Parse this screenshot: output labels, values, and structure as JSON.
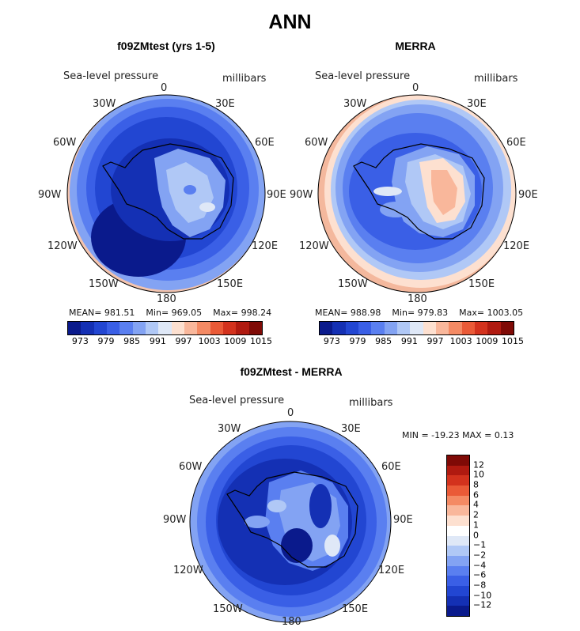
{
  "title": "ANN",
  "panels": {
    "model": {
      "title": "f09ZMtest (yrs 1-5)",
      "variable": "Sea-level pressure",
      "units": "millibars",
      "mean_label": "MEAN=",
      "mean": "981.51",
      "min_label": "Min=",
      "min": "969.05",
      "max_label": "Max=",
      "max": "998.24"
    },
    "obs": {
      "title": "MERRA",
      "variable": "Sea-level pressure",
      "units": "millibars",
      "mean_label": "MEAN=",
      "mean": "988.98",
      "min_label": "Min=",
      "min": "979.83",
      "max_label": "Max=",
      "max": "1003.05"
    },
    "diff": {
      "title": "f09ZMtest - MERRA",
      "variable": "Sea-level pressure",
      "units": "millibars",
      "minmax": "MIN = -19.23 MAX =   0.13"
    }
  },
  "longitude_labels": {
    "top": "0",
    "n30e": "30E",
    "n60e": "60E",
    "e90": "90E",
    "s120e": "120E",
    "s150e": "150E",
    "bottom": "180",
    "s150w": "150W",
    "s120w": "120W",
    "w90": "90W",
    "n60w": "60W",
    "n30w": "30W"
  },
  "colorbar_main": {
    "colors": [
      "#0a1a8c",
      "#1430b4",
      "#2246d2",
      "#3a5fe6",
      "#5a7ff0",
      "#83a3f3",
      "#b0c8f6",
      "#dfe8f7",
      "#fde0d0",
      "#f9b79b",
      "#f48a64",
      "#ea5a37",
      "#d3321d",
      "#b01a10",
      "#7f0a06"
    ],
    "ticks": [
      "973",
      "979",
      "985",
      "991",
      "997",
      "1003",
      "1009",
      "1015"
    ]
  },
  "colorbar_diff": {
    "colors": [
      "#7f0a06",
      "#b01a10",
      "#d3321d",
      "#ea5a37",
      "#f48a64",
      "#f9b79b",
      "#fde0d0",
      "#ffffff",
      "#dfe8f7",
      "#b0c8f6",
      "#83a3f3",
      "#5a7ff0",
      "#3a5fe6",
      "#2246d2",
      "#1430b4",
      "#0a1a8c"
    ],
    "ticks": [
      "12",
      "10",
      "8",
      "6",
      "4",
      "2",
      "1",
      "0",
      "−1",
      "−2",
      "−4",
      "−6",
      "−8",
      "−10",
      "−12"
    ]
  }
}
